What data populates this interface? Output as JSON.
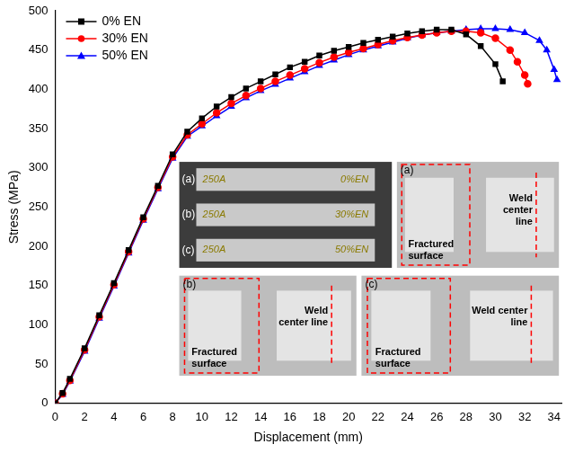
{
  "chart_data": {
    "type": "line",
    "x_label": "Displacement (mm)",
    "y_label": "Stress (MPa)",
    "xlim": [
      0,
      34.5
    ],
    "xticks": [
      0,
      2,
      4,
      6,
      8,
      10,
      12,
      14,
      16,
      18,
      20,
      22,
      24,
      26,
      28,
      30,
      32,
      34
    ],
    "ylim": [
      0,
      500
    ],
    "yticks": [
      0,
      50,
      100,
      150,
      200,
      250,
      300,
      350,
      400,
      450,
      500
    ],
    "grid": false,
    "legend": "upper left",
    "series": [
      {
        "name": "0% EN",
        "color": "#000000",
        "marker": "square",
        "x": [
          0,
          0.5,
          1,
          2,
          3,
          4,
          5,
          6,
          7,
          8,
          9,
          10,
          11,
          12,
          13,
          14,
          15,
          16,
          17,
          18,
          19,
          20,
          21,
          22,
          23,
          24,
          25,
          26,
          27,
          28,
          29,
          30,
          30.5
        ],
        "values": [
          0,
          13,
          31,
          70,
          112,
          153,
          195,
          237,
          277,
          317,
          346,
          363,
          378,
          390,
          401,
          410,
          419,
          428,
          435,
          443,
          449,
          454,
          459,
          463,
          467,
          471,
          474,
          476,
          476,
          470,
          455,
          432,
          410
        ]
      },
      {
        "name": "30% EN",
        "color": "#ff0000",
        "marker": "circle",
        "x": [
          0,
          0.5,
          1,
          2,
          3,
          4,
          5,
          6,
          7,
          8,
          9,
          10,
          11,
          12,
          13,
          14,
          15,
          16,
          17,
          18,
          19,
          20,
          21,
          22,
          23,
          24,
          25,
          26,
          27,
          28,
          29,
          30,
          31,
          31.5,
          32,
          32.2
        ],
        "values": [
          0,
          12,
          29,
          68,
          110,
          151,
          193,
          235,
          275,
          314,
          342,
          356,
          370,
          382,
          392,
          401,
          410,
          418,
          426,
          434,
          441,
          447,
          452,
          457,
          462,
          466,
          469,
          472,
          474,
          474,
          472,
          465,
          450,
          435,
          418,
          407
        ]
      },
      {
        "name": "50% EN",
        "color": "#0000ff",
        "marker": "triangle",
        "x": [
          0,
          0.5,
          1,
          2,
          3,
          4,
          5,
          6,
          7,
          8,
          9,
          10,
          11,
          12,
          13,
          14,
          15,
          16,
          17,
          18,
          19,
          20,
          21,
          22,
          23,
          24,
          25,
          26,
          27,
          28,
          29,
          30,
          31,
          32,
          33,
          33.5,
          34,
          34.2
        ],
        "values": [
          0,
          11,
          28,
          66,
          108,
          149,
          191,
          233,
          273,
          312,
          340,
          353,
          366,
          378,
          389,
          398,
          406,
          414,
          422,
          430,
          437,
          444,
          450,
          455,
          460,
          465,
          469,
          472,
          474,
          476,
          477,
          477,
          476,
          472,
          462,
          450,
          425,
          412
        ]
      }
    ],
    "annotations": {
      "overview": [
        {
          "label": "(a)",
          "texts": [
            "250A",
            "0%EN"
          ]
        },
        {
          "label": "(b)",
          "texts": [
            "250A",
            "30%EN"
          ]
        },
        {
          "label": "(c)",
          "texts": [
            "250A",
            "50%EN"
          ]
        }
      ],
      "details": [
        {
          "label": "(a)",
          "texts": [
            "Fractured surface",
            "Weld center line"
          ]
        },
        {
          "label": "(b)",
          "texts": [
            "Fractured surface",
            "Weld center line"
          ]
        },
        {
          "label": "(c)",
          "texts": [
            "Fractured surface",
            "Weld center line"
          ]
        }
      ]
    }
  }
}
